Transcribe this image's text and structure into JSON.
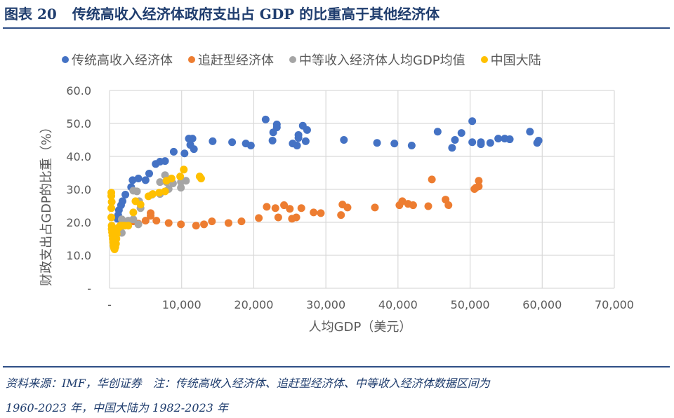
{
  "header": {
    "figure_no": "图表 20",
    "title": "传统高收入经济体政府支出占 GDP 的比重高于其他经济体"
  },
  "footer": {
    "line1": "资料来源：IMF，华创证券　注：传统高收入经济体、追赶型经济体、中等收入经济体数据区间为",
    "line2": "1960-2023 年，中国大陆为 1982-2023 年"
  },
  "chart_data": {
    "type": "scatter",
    "title": "",
    "xlabel": "人均GDP（美元）",
    "ylabel": "财政支出占GDP的比重（%）",
    "xlim": [
      0,
      70000
    ],
    "ylim": [
      0,
      60
    ],
    "x_ticks": [
      "-",
      "10,000",
      "20,000",
      "30,000",
      "40,000",
      "50,000",
      "60,000",
      "70,000"
    ],
    "y_ticks": [
      "-",
      "10.0",
      "20.0",
      "30.0",
      "40.0",
      "50.0",
      "60.0"
    ],
    "grid": true,
    "legend_position": "top",
    "series": [
      {
        "name": "传统高收入经济体",
        "color": "#4472C4",
        "points": [
          [
            1100,
            21.1
          ],
          [
            1200,
            22.2
          ],
          [
            1300,
            23.7
          ],
          [
            1600,
            25.2
          ],
          [
            1800,
            26.4
          ],
          [
            2200,
            28.4
          ],
          [
            3000,
            30.7
          ],
          [
            3200,
            32.8
          ],
          [
            4000,
            33.3
          ],
          [
            5000,
            32.8
          ],
          [
            5500,
            34.8
          ],
          [
            6400,
            37.7
          ],
          [
            7000,
            38.4
          ],
          [
            7700,
            38.6
          ],
          [
            8900,
            41.4
          ],
          [
            10400,
            40.9
          ],
          [
            11000,
            45.4
          ],
          [
            11500,
            45.4
          ],
          [
            11200,
            43.5
          ],
          [
            11700,
            42.2
          ],
          [
            14300,
            44.6
          ],
          [
            17000,
            44.3
          ],
          [
            18900,
            43.9
          ],
          [
            19600,
            43.3
          ],
          [
            21650,
            51.2
          ],
          [
            23200,
            49.7
          ],
          [
            23200,
            48.8
          ],
          [
            22700,
            47.3
          ],
          [
            22600,
            44.8
          ],
          [
            26800,
            49.3
          ],
          [
            27400,
            48.0
          ],
          [
            26200,
            46.5
          ],
          [
            26200,
            45.6
          ],
          [
            25400,
            43.9
          ],
          [
            26000,
            43.3
          ],
          [
            27200,
            44.6
          ],
          [
            32500,
            45.0
          ],
          [
            37100,
            44.1
          ],
          [
            39500,
            43.9
          ],
          [
            41900,
            43.3
          ],
          [
            45500,
            47.5
          ],
          [
            50300,
            50.7
          ],
          [
            48800,
            47.1
          ],
          [
            47900,
            45.0
          ],
          [
            47500,
            42.6
          ],
          [
            50300,
            44.3
          ],
          [
            51500,
            44.3
          ],
          [
            51500,
            43.7
          ],
          [
            52800,
            44.1
          ],
          [
            53900,
            45.4
          ],
          [
            54800,
            45.4
          ],
          [
            55500,
            45.2
          ],
          [
            58300,
            47.5
          ],
          [
            59500,
            44.8
          ],
          [
            59300,
            44.1
          ]
        ]
      },
      {
        "name": "追赶型经济体",
        "color": "#ED7D31",
        "points": [
          [
            2000,
            19.2
          ],
          [
            2600,
            19.8
          ],
          [
            3300,
            20.3
          ],
          [
            4000,
            19.6
          ],
          [
            5000,
            20.5
          ],
          [
            5700,
            22.8
          ],
          [
            5700,
            22.0
          ],
          [
            6500,
            20.5
          ],
          [
            8200,
            19.8
          ],
          [
            9900,
            19.4
          ],
          [
            12000,
            19.0
          ],
          [
            13100,
            19.4
          ],
          [
            14200,
            20.3
          ],
          [
            16500,
            19.8
          ],
          [
            18300,
            20.3
          ],
          [
            20700,
            21.3
          ],
          [
            21800,
            24.7
          ],
          [
            23000,
            24.3
          ],
          [
            23400,
            21.5
          ],
          [
            24200,
            25.2
          ],
          [
            25000,
            24.1
          ],
          [
            26600,
            24.3
          ],
          [
            25300,
            21.1
          ],
          [
            25900,
            21.5
          ],
          [
            28300,
            23.0
          ],
          [
            29300,
            22.8
          ],
          [
            32100,
            22.2
          ],
          [
            32300,
            25.4
          ],
          [
            33000,
            24.5
          ],
          [
            36800,
            24.5
          ],
          [
            40200,
            25.2
          ],
          [
            40600,
            26.4
          ],
          [
            41400,
            25.6
          ],
          [
            42100,
            25.2
          ],
          [
            44200,
            24.9
          ],
          [
            44700,
            33.0
          ],
          [
            46600,
            26.9
          ],
          [
            47000,
            25.2
          ],
          [
            50600,
            30.1
          ],
          [
            51200,
            30.9
          ],
          [
            51200,
            32.6
          ],
          [
            50800,
            30.5
          ]
        ]
      },
      {
        "name": "中等收入经济体人均GDP均值",
        "color": "#A5A5A5",
        "points": [
          [
            900,
            15.8
          ],
          [
            1700,
            16.8
          ],
          [
            1700,
            20.9
          ],
          [
            2600,
            20.5
          ],
          [
            3300,
            20.9
          ],
          [
            4000,
            19.4
          ],
          [
            4100,
            26.4
          ],
          [
            4300,
            24.3
          ],
          [
            3800,
            29.4
          ],
          [
            3300,
            29.6
          ],
          [
            5900,
            28.4
          ],
          [
            7000,
            28.6
          ],
          [
            8200,
            30.1
          ],
          [
            7000,
            32.2
          ],
          [
            7900,
            32.2
          ],
          [
            8800,
            31.8
          ],
          [
            9900,
            32.2
          ],
          [
            10600,
            32.6
          ],
          [
            9900,
            30.5
          ],
          [
            7700,
            34.3
          ]
        ]
      },
      {
        "name": "中国大陆",
        "color": "#FFC000",
        "points": [
          [
            250,
            29.0
          ],
          [
            250,
            28.0
          ],
          [
            300,
            26.2
          ],
          [
            250,
            24.3
          ],
          [
            250,
            21.5
          ],
          [
            300,
            19.0
          ],
          [
            300,
            18.0
          ],
          [
            350,
            17.0
          ],
          [
            400,
            16.0
          ],
          [
            450,
            15.0
          ],
          [
            500,
            14.0
          ],
          [
            550,
            13.0
          ],
          [
            600,
            12.5
          ],
          [
            650,
            12.0
          ],
          [
            700,
            11.8
          ],
          [
            800,
            12.5
          ],
          [
            900,
            13.5
          ],
          [
            950,
            15.0
          ],
          [
            1000,
            16.5
          ],
          [
            1100,
            18.0
          ],
          [
            1300,
            18.5
          ],
          [
            1500,
            19.0
          ],
          [
            1800,
            19.0
          ],
          [
            2100,
            19.0
          ],
          [
            2600,
            19.0
          ],
          [
            3300,
            23.0
          ],
          [
            3600,
            26.4
          ],
          [
            4300,
            25.4
          ],
          [
            5400,
            27.9
          ],
          [
            6000,
            28.6
          ],
          [
            6900,
            29.0
          ],
          [
            7700,
            29.4
          ],
          [
            7900,
            32.6
          ],
          [
            8600,
            33.3
          ],
          [
            9800,
            33.9
          ],
          [
            10300,
            36.0
          ],
          [
            12500,
            33.9
          ],
          [
            12700,
            33.3
          ]
        ]
      }
    ]
  }
}
